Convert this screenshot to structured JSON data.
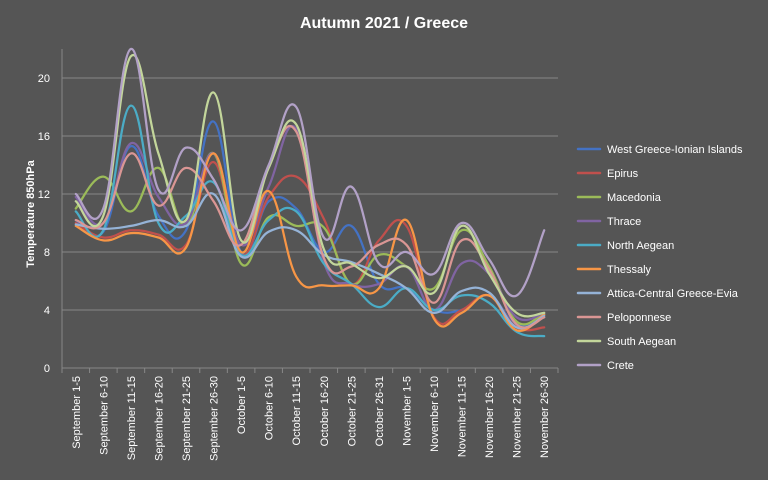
{
  "chart_data": {
    "type": "line",
    "title": "Autumn 2021 / Greece",
    "ylabel": "Temperature 850hPa",
    "xlabel": "",
    "ylim": [
      0,
      22
    ],
    "yticks": [
      0,
      4,
      8,
      12,
      16,
      20
    ],
    "grid": true,
    "legend_position": "right",
    "categories": [
      "September 1-5",
      "September 6-10",
      "September 11-15",
      "September 16-20",
      "September 21-25",
      "September 26-30",
      "October 1-5",
      "October 6-10",
      "October 11-15",
      "October 16-20",
      "October 21-25",
      "October 26-31",
      "November 1-5",
      "November 6-10",
      "November 11-15",
      "November 16-20",
      "November 21-25",
      "November 26-30"
    ],
    "series": [
      {
        "name": "West Greece-Ionian Islands",
        "color": "#4472c4",
        "values": [
          10.2,
          9.4,
          15.3,
          10.5,
          9.5,
          17.0,
          8.0,
          11.5,
          11.0,
          8.0,
          9.8,
          5.8,
          5.5,
          4.0,
          4.0,
          5.0,
          3.0,
          3.5
        ]
      },
      {
        "name": "Epirus",
        "color": "#c0504d",
        "values": [
          10.0,
          9.0,
          9.5,
          9.2,
          8.5,
          14.2,
          7.8,
          11.8,
          13.2,
          10.3,
          5.8,
          8.8,
          9.8,
          3.5,
          4.0,
          5.0,
          2.8,
          2.8
        ]
      },
      {
        "name": "Macedonia",
        "color": "#9bbb59",
        "values": [
          11.0,
          13.2,
          10.8,
          13.8,
          9.8,
          14.8,
          7.2,
          10.4,
          9.8,
          9.7,
          5.8,
          7.8,
          7.0,
          5.5,
          9.5,
          7.0,
          3.2,
          3.8
        ]
      },
      {
        "name": "Thrace",
        "color": "#8064a2",
        "values": [
          11.8,
          10.0,
          15.5,
          11.8,
          10.0,
          14.8,
          8.5,
          12.5,
          16.5,
          7.3,
          5.8,
          5.8,
          7.0,
          4.0,
          7.2,
          6.5,
          3.5,
          3.8
        ]
      },
      {
        "name": "North Aegean",
        "color": "#4bacc6",
        "values": [
          10.8,
          9.5,
          18.1,
          10.0,
          10.5,
          12.8,
          7.8,
          10.2,
          10.8,
          7.2,
          5.8,
          4.2,
          5.5,
          4.0,
          5.0,
          4.5,
          2.5,
          2.2
        ]
      },
      {
        "name": "Thessaly",
        "color": "#f79646",
        "values": [
          9.8,
          8.8,
          9.3,
          9.0,
          8.3,
          14.8,
          8.0,
          12.2,
          6.3,
          5.7,
          5.7,
          5.5,
          10.2,
          3.4,
          3.8,
          5.0,
          2.6,
          3.7
        ]
      },
      {
        "name": "Attica-Central Greece-Evia",
        "color": "#95b3d7",
        "values": [
          9.9,
          9.6,
          9.8,
          10.2,
          9.8,
          12.0,
          7.7,
          9.4,
          9.5,
          7.8,
          7.3,
          6.5,
          5.5,
          3.8,
          5.3,
          5.2,
          2.8,
          3.6
        ]
      },
      {
        "name": "Peloponnese",
        "color": "#da9694",
        "values": [
          10.2,
          10.0,
          14.8,
          11.2,
          13.8,
          11.5,
          8.5,
          13.9,
          16.3,
          7.6,
          7.0,
          8.5,
          8.5,
          4.5,
          8.8,
          6.8,
          3.0,
          3.5
        ]
      },
      {
        "name": "South Aegean",
        "color": "#c3d69b",
        "values": [
          11.5,
          10.5,
          21.5,
          14.8,
          10.2,
          19.0,
          8.8,
          13.8,
          16.8,
          8.2,
          7.2,
          6.2,
          7.0,
          5.2,
          9.8,
          6.5,
          3.8,
          3.8
        ]
      },
      {
        "name": "Crete",
        "color": "#b2a1c7",
        "values": [
          12.0,
          11.0,
          22.0,
          12.3,
          15.2,
          13.0,
          9.5,
          14.0,
          18.0,
          9.0,
          12.5,
          7.2,
          8.0,
          6.5,
          10.0,
          7.5,
          5.0,
          9.5
        ]
      }
    ]
  }
}
